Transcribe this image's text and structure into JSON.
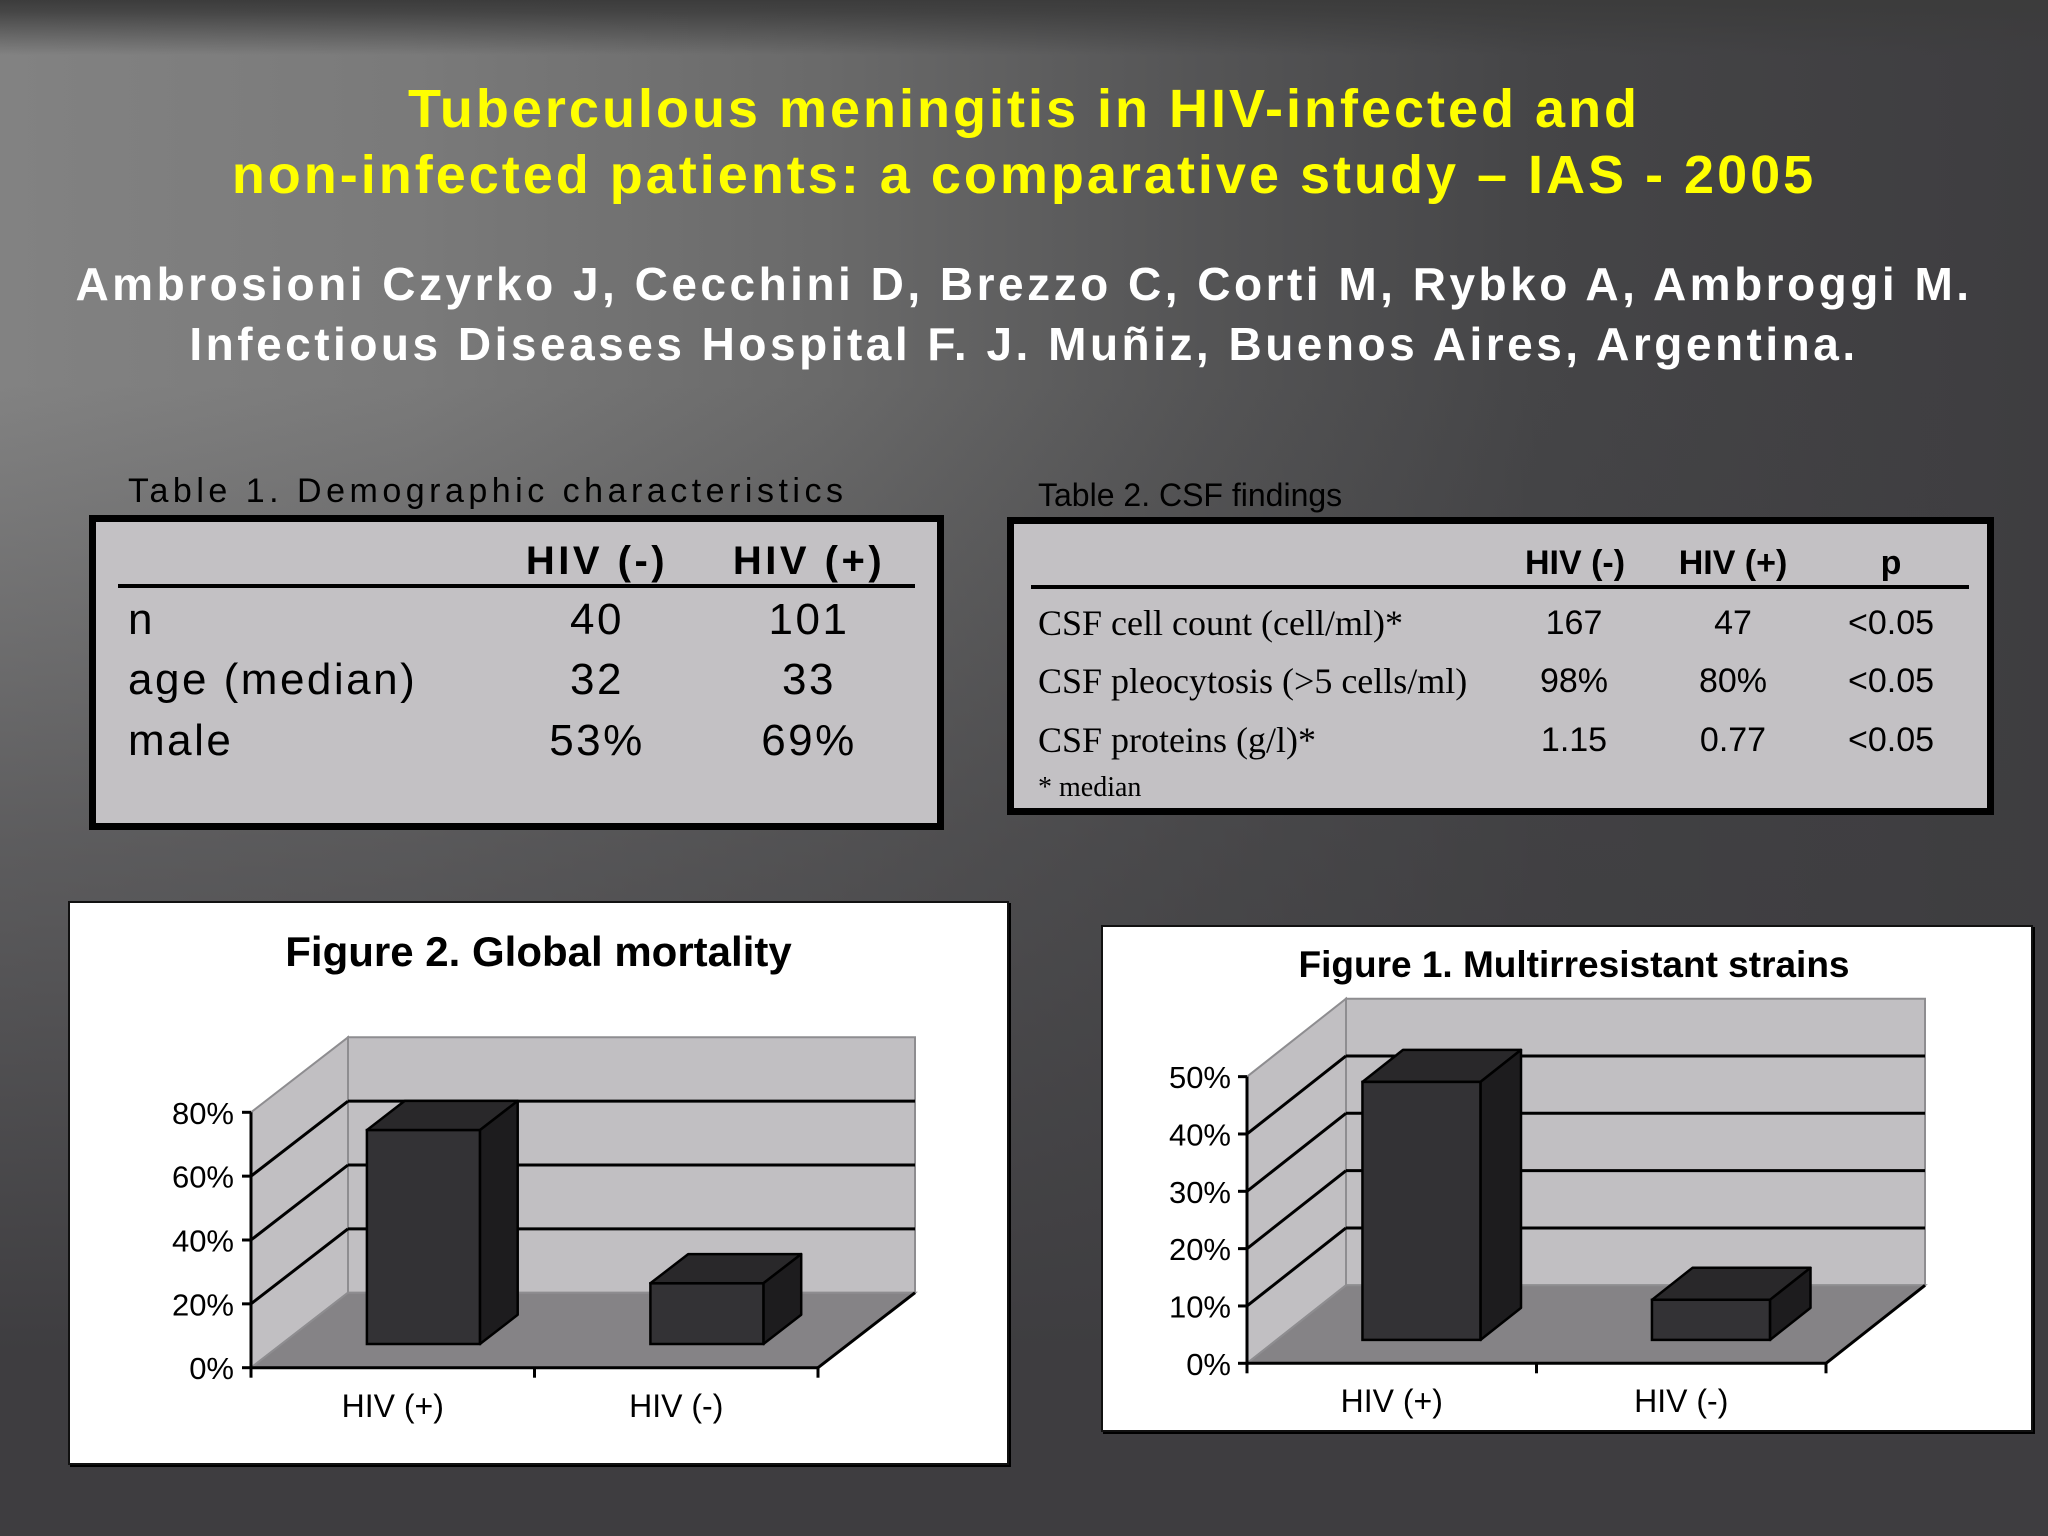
{
  "slide": {
    "title": {
      "line1": "Tuberculous meningitis in HIV-infected and",
      "line2": "non-infected patients: a comparative study – IAS - 2005"
    },
    "authors": {
      "line1": "Ambrosioni Czyrko J, Cecchini D, Brezzo C, Corti M, Rybko A, Ambroggi M.",
      "line2": "Infectious Diseases Hospital F. J. Muñiz, Buenos Aires, Argentina."
    }
  },
  "colors": {
    "title": "#ffff00",
    "authors": "#ffffff",
    "table_fill": "#c3c1c4",
    "chart_wall": "#c1bfc2",
    "chart_floor": "#858386",
    "bar_front": "#333235",
    "bar_top": "#29282a",
    "bar_side": "#1d1c1e",
    "background_dark": "#3e3d40"
  },
  "table1": {
    "caption": "Table 1. Demographic characteristics",
    "headers": [
      "",
      "HIV (-)",
      "HIV (+)"
    ],
    "rows": [
      {
        "label": "n",
        "values": [
          "40",
          "101"
        ]
      },
      {
        "label": "age (median)",
        "values": [
          "32",
          "33"
        ]
      },
      {
        "label": "male",
        "values": [
          "53%",
          "69%"
        ]
      }
    ]
  },
  "table2": {
    "caption": "Table 2. CSF findings",
    "headers": [
      "",
      "HIV (-)",
      "HIV (+)",
      "p"
    ],
    "rows": [
      {
        "label": "CSF cell count (cell/ml)*",
        "values": [
          "167",
          "47",
          "<0.05"
        ]
      },
      {
        "label": "CSF pleocytosis (>5 cells/ml)",
        "values": [
          "98%",
          "80%",
          "<0.05"
        ]
      },
      {
        "label": "CSF proteins (g/l)*",
        "values": [
          "1.15",
          "0.77",
          "<0.05"
        ]
      }
    ],
    "footnote": "* median"
  },
  "chart_data": [
    {
      "type": "bar",
      "style": "3d-column",
      "title": "Figure 2. Global mortality",
      "categories": [
        "HIV (+)",
        "HIV (-)"
      ],
      "values": [
        67,
        19
      ],
      "unit": "%",
      "xlabel": "",
      "ylabel": "",
      "ylim": [
        0,
        80
      ],
      "yticks": [
        0,
        20,
        40,
        60,
        80
      ],
      "ytick_labels": [
        "0%",
        "20%",
        "40%",
        "60%",
        "80%"
      ],
      "grid": true,
      "legend": null
    },
    {
      "type": "bar",
      "style": "3d-column",
      "title": "Figure 1. Multirresistant strains",
      "categories": [
        "HIV (+)",
        "HIV (-)"
      ],
      "values": [
        45,
        7
      ],
      "unit": "%",
      "xlabel": "",
      "ylabel": "",
      "ylim": [
        0,
        50
      ],
      "yticks": [
        0,
        10,
        20,
        30,
        40,
        50
      ],
      "ytick_labels": [
        "0%",
        "10%",
        "20%",
        "30%",
        "40%",
        "50%"
      ],
      "grid": true,
      "legend": null
    }
  ]
}
